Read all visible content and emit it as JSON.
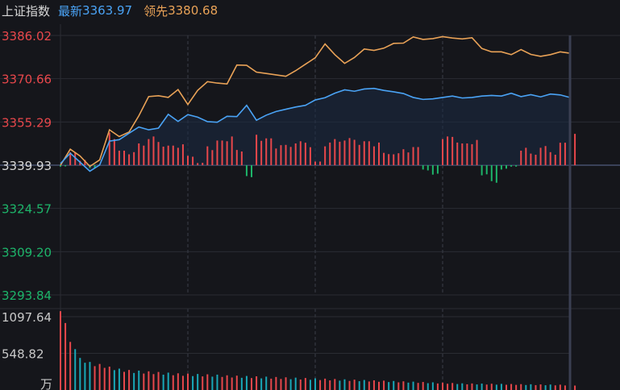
{
  "header": {
    "title": "上证指数",
    "latest_label": "最新",
    "latest_value": "3363.97",
    "lead_label": "领先",
    "lead_value": "3380.68"
  },
  "colors": {
    "background": "#15161b",
    "up": "#e8474b",
    "down": "#1db56a",
    "latest_line": "#4aa3f5",
    "lead_line": "#e9a257",
    "neutral": "#d8d8d8"
  },
  "chart_data": [
    {
      "type": "line",
      "panel": "price",
      "ylim": [
        3293.84,
        3386.02
      ],
      "reference": 3339.93,
      "y_ticks": [
        {
          "value": 3386.02,
          "label": "3386.02"
        },
        {
          "value": 3370.66,
          "label": "3370.66"
        },
        {
          "value": 3355.29,
          "label": "3355.29"
        },
        {
          "value": 3339.93,
          "label": "3339.93"
        },
        {
          "value": 3324.57,
          "label": "3324.57"
        },
        {
          "value": 3309.2,
          "label": "3309.20"
        },
        {
          "value": 3293.84,
          "label": "3293.84"
        }
      ],
      "series": [
        {
          "name": "领先",
          "values": [
            3339.9,
            3345.6,
            3343.2,
            3339.5,
            3341.8,
            3352.5,
            3350.1,
            3351.7,
            3357.5,
            3364.3,
            3364.6,
            3364.0,
            3366.8,
            3361.5,
            3366.5,
            3369.6,
            3369.1,
            3368.8,
            3375.5,
            3375.4,
            3373.0,
            3372.5,
            3372.0,
            3371.5,
            3373.5,
            3375.8,
            3378.1,
            3383.0,
            3379.2,
            3376.1,
            3378.2,
            3381.2,
            3380.7,
            3381.5,
            3383.2,
            3383.3,
            3385.5,
            3384.6,
            3384.9,
            3385.6,
            3385.1,
            3384.8,
            3385.2,
            3381.4,
            3380.2,
            3380.2,
            3379.2,
            3381.0,
            3379.3,
            3378.6,
            3379.2,
            3380.2,
            3379.7
          ]
        },
        {
          "name": "最新",
          "values": [
            3340.5,
            3344.2,
            3341.0,
            3337.8,
            3340.0,
            3348.5,
            3349.0,
            3351.3,
            3353.5,
            3352.5,
            3353.1,
            3358.0,
            3355.5,
            3357.9,
            3357.0,
            3355.4,
            3355.2,
            3357.3,
            3357.2,
            3361.2,
            3355.9,
            3357.7,
            3359.0,
            3359.8,
            3360.6,
            3361.2,
            3363.1,
            3363.9,
            3365.5,
            3366.7,
            3366.2,
            3367.0,
            3367.2,
            3366.5,
            3366.0,
            3365.4,
            3364.0,
            3363.3,
            3363.5,
            3364.0,
            3364.5,
            3363.8,
            3364.0,
            3364.5,
            3364.7,
            3364.5,
            3365.5,
            3364.3,
            3365.0,
            3364.2,
            3365.2,
            3364.9,
            3363.97
          ]
        }
      ],
      "diff_bars": [
        -0.2,
        1.8,
        0.6,
        -0.4,
        0.0,
        4.5,
        2.0,
        1.5,
        3.0,
        3.6,
        3.2,
        2.7,
        2.4,
        1.3,
        0.3,
        2.6,
        3.4,
        3.3,
        2.1,
        -1.5,
        4.2,
        3.7,
        2.3,
        2.8,
        3.0,
        3.1,
        0.5,
        2.6,
        3.6,
        3.4,
        3.5,
        3.3,
        2.6,
        1.7,
        1.5,
        2.2,
        2.5,
        -0.6,
        -1.3,
        3.6,
        3.9,
        3.0,
        2.9,
        -1.4,
        -2.2,
        -0.6,
        -0.2,
        2.0,
        1.6,
        2.4,
        1.8,
        3.1,
        3.6
      ],
      "time_divisions": 8
    },
    {
      "type": "bar",
      "panel": "volume",
      "unit": "万",
      "y_ticks": [
        {
          "value": 1097.64,
          "label": "1097.64"
        },
        {
          "value": 548.82,
          "label": "548.82"
        }
      ],
      "values": [
        1180,
        720,
        480,
        420,
        390,
        350,
        320,
        300,
        290,
        280,
        270,
        260,
        250,
        245,
        240,
        235,
        230,
        220,
        215,
        210,
        205,
        200,
        195,
        190,
        185,
        180,
        175,
        170,
        165,
        160,
        155,
        150,
        145,
        140,
        135,
        130,
        125,
        120,
        115,
        110,
        105,
        100,
        98,
        96,
        94,
        92,
        90,
        88,
        86,
        84,
        82,
        80,
        78
      ],
      "directions": [
        1,
        1,
        0,
        0,
        1,
        1,
        0,
        1,
        0,
        1,
        1,
        0,
        1,
        1,
        0,
        1,
        0,
        1,
        1,
        0,
        1,
        0,
        1,
        1,
        0,
        1,
        0,
        1,
        1,
        0,
        1,
        0,
        1,
        1,
        0,
        1,
        0,
        1,
        0,
        1,
        1,
        0,
        1,
        0,
        1,
        0,
        1,
        1,
        0,
        1,
        0,
        1,
        1
      ]
    }
  ]
}
